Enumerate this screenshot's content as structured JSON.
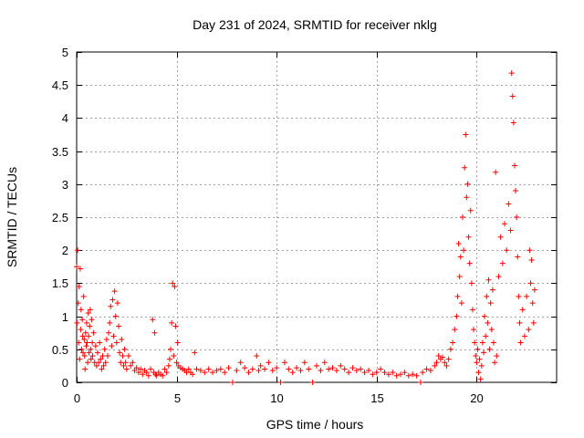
{
  "chart_data": {
    "type": "scatter",
    "title": "Day 231 of 2024, SRMTID for receiver nklg",
    "xlabel": "GPS time / hours",
    "ylabel": "SRMTID / TECUs",
    "xlim": [
      0,
      24
    ],
    "ylim": [
      0,
      5
    ],
    "xticks": [
      0,
      5,
      10,
      15,
      20
    ],
    "xtick_labels": [
      "0",
      "5",
      "10",
      "15",
      "20"
    ],
    "yticks": [
      0,
      0.5,
      1,
      1.5,
      2,
      2.5,
      3,
      3.5,
      4,
      4.5,
      5
    ],
    "ytick_labels": [
      "0",
      "0.5",
      "1",
      "1.5",
      "2",
      "2.5",
      "3",
      "3.5",
      "4",
      "4.5",
      "5"
    ],
    "grid": true,
    "marker": "+",
    "series": [
      {
        "name": "SRMTID",
        "color": "#ff0000",
        "points": [
          [
            0.0,
            1.75
          ],
          [
            0.02,
            0.9
          ],
          [
            0.05,
            2.0
          ],
          [
            0.08,
            1.2
          ],
          [
            0.1,
            0.6
          ],
          [
            0.12,
            1.45
          ],
          [
            0.15,
            0.35
          ],
          [
            0.18,
            1.72
          ],
          [
            0.2,
            0.8
          ],
          [
            0.22,
            1.1
          ],
          [
            0.25,
            0.5
          ],
          [
            0.28,
            0.95
          ],
          [
            0.3,
            0.7
          ],
          [
            0.32,
            0.45
          ],
          [
            0.35,
            1.3
          ],
          [
            0.38,
            0.65
          ],
          [
            0.4,
            0.4
          ],
          [
            0.42,
            0.2
          ],
          [
            0.45,
            0.75
          ],
          [
            0.48,
            0.55
          ],
          [
            0.5,
            0.9
          ],
          [
            0.52,
            0.6
          ],
          [
            0.55,
            0.3
          ],
          [
            0.58,
            1.05
          ],
          [
            0.6,
            0.7
          ],
          [
            0.62,
            0.45
          ],
          [
            0.65,
            0.85
          ],
          [
            0.68,
            1.1
          ],
          [
            0.7,
            0.5
          ],
          [
            0.72,
            0.35
          ],
          [
            0.75,
            0.95
          ],
          [
            0.78,
            0.6
          ],
          [
            0.8,
            0.4
          ],
          [
            0.85,
            0.75
          ],
          [
            0.9,
            0.3
          ],
          [
            0.95,
            0.55
          ],
          [
            1.0,
            0.25
          ],
          [
            1.05,
            0.45
          ],
          [
            1.1,
            0.3
          ],
          [
            1.15,
            0.6
          ],
          [
            1.2,
            0.35
          ],
          [
            1.25,
            0.2
          ],
          [
            1.3,
            0.4
          ],
          [
            1.35,
            0.25
          ],
          [
            1.4,
            0.5
          ],
          [
            1.45,
            0.3
          ],
          [
            1.5,
            0.65
          ],
          [
            1.55,
            0.4
          ],
          [
            1.6,
            0.75
          ],
          [
            1.65,
            0.9
          ],
          [
            1.7,
            1.15
          ],
          [
            1.75,
            0.55
          ],
          [
            1.8,
            1.25
          ],
          [
            1.85,
            0.7
          ],
          [
            1.9,
            1.38
          ],
          [
            1.95,
            1.0
          ],
          [
            2.0,
            0.6
          ],
          [
            2.05,
            1.2
          ],
          [
            2.1,
            0.85
          ],
          [
            2.15,
            0.45
          ],
          [
            2.2,
            0.3
          ],
          [
            2.25,
            0.65
          ],
          [
            2.3,
            0.4
          ],
          [
            2.35,
            0.25
          ],
          [
            2.4,
            0.5
          ],
          [
            2.45,
            0.3
          ],
          [
            2.5,
            0.2
          ],
          [
            2.6,
            0.4
          ],
          [
            2.7,
            0.25
          ],
          [
            2.8,
            0.3
          ],
          [
            2.9,
            0.18
          ],
          [
            3.0,
            0.22
          ],
          [
            3.1,
            0.15
          ],
          [
            3.2,
            0.2
          ],
          [
            3.3,
            0.12
          ],
          [
            3.4,
            0.18
          ],
          [
            3.5,
            0.15
          ],
          [
            3.6,
            0.1
          ],
          [
            3.7,
            0.2
          ],
          [
            3.8,
            0.95
          ],
          [
            3.85,
            0.15
          ],
          [
            3.9,
            0.75
          ],
          [
            3.95,
            0.12
          ],
          [
            4.0,
            0.1
          ],
          [
            4.1,
            0.15
          ],
          [
            4.2,
            0.12
          ],
          [
            4.3,
            0.1
          ],
          [
            4.4,
            0.2
          ],
          [
            4.5,
            0.15
          ],
          [
            4.6,
            0.25
          ],
          [
            4.65,
            0.35
          ],
          [
            4.7,
            0.5
          ],
          [
            4.75,
            0.9
          ],
          [
            4.8,
            1.5
          ],
          [
            4.85,
            0.4
          ],
          [
            4.9,
            1.45
          ],
          [
            4.95,
            0.85
          ],
          [
            5.0,
            0.3
          ],
          [
            5.05,
            0.6
          ],
          [
            5.1,
            0.25
          ],
          [
            5.2,
            0.22
          ],
          [
            5.3,
            0.2
          ],
          [
            5.4,
            0.18
          ],
          [
            5.5,
            0.15
          ],
          [
            5.6,
            0.2
          ],
          [
            5.7,
            0.15
          ],
          [
            5.8,
            0.12
          ],
          [
            5.9,
            0.45
          ],
          [
            6.0,
            0.2
          ],
          [
            6.2,
            0.18
          ],
          [
            6.4,
            0.15
          ],
          [
            6.6,
            0.2
          ],
          [
            6.8,
            0.15
          ],
          [
            7.0,
            0.18
          ],
          [
            7.2,
            0.2
          ],
          [
            7.4,
            0.15
          ],
          [
            7.6,
            0.22
          ],
          [
            7.8,
            0.0
          ],
          [
            8.0,
            0.18
          ],
          [
            8.2,
            0.3
          ],
          [
            8.4,
            0.22
          ],
          [
            8.6,
            0.15
          ],
          [
            8.8,
            0.2
          ],
          [
            9.0,
            0.4
          ],
          [
            9.1,
            0.18
          ],
          [
            9.2,
            0.25
          ],
          [
            9.4,
            0.2
          ],
          [
            9.6,
            0.3
          ],
          [
            9.8,
            0.18
          ],
          [
            10.0,
            0.22
          ],
          [
            10.2,
            0.0
          ],
          [
            10.4,
            0.3
          ],
          [
            10.6,
            0.2
          ],
          [
            10.8,
            0.15
          ],
          [
            11.0,
            0.22
          ],
          [
            11.2,
            0.18
          ],
          [
            11.4,
            0.3
          ],
          [
            11.6,
            0.2
          ],
          [
            11.8,
            0.0
          ],
          [
            12.0,
            0.25
          ],
          [
            12.2,
            0.18
          ],
          [
            12.4,
            0.3
          ],
          [
            12.6,
            0.2
          ],
          [
            12.8,
            0.22
          ],
          [
            13.0,
            0.18
          ],
          [
            13.2,
            0.25
          ],
          [
            13.4,
            0.2
          ],
          [
            13.6,
            0.15
          ],
          [
            13.8,
            0.22
          ],
          [
            14.0,
            0.18
          ],
          [
            14.2,
            0.2
          ],
          [
            14.4,
            0.15
          ],
          [
            14.6,
            0.18
          ],
          [
            14.8,
            0.12
          ],
          [
            15.0,
            0.15
          ],
          [
            15.2,
            0.2
          ],
          [
            15.4,
            0.15
          ],
          [
            15.6,
            0.12
          ],
          [
            15.8,
            0.15
          ],
          [
            16.0,
            0.1
          ],
          [
            16.2,
            0.12
          ],
          [
            16.4,
            0.15
          ],
          [
            16.6,
            0.1
          ],
          [
            16.8,
            0.12
          ],
          [
            17.0,
            0.1
          ],
          [
            17.2,
            0.0
          ],
          [
            17.3,
            0.15
          ],
          [
            17.5,
            0.2
          ],
          [
            17.7,
            0.18
          ],
          [
            17.9,
            0.25
          ],
          [
            18.0,
            0.3
          ],
          [
            18.1,
            0.4
          ],
          [
            18.2,
            0.35
          ],
          [
            18.3,
            0.38
          ],
          [
            18.4,
            0.3
          ],
          [
            18.5,
            0.25
          ],
          [
            18.6,
            0.35
          ],
          [
            18.7,
            0.5
          ],
          [
            18.8,
            0.6
          ],
          [
            18.9,
            0.8
          ],
          [
            19.0,
            1.0
          ],
          [
            19.05,
            1.3
          ],
          [
            19.1,
            2.1
          ],
          [
            19.15,
            1.6
          ],
          [
            19.2,
            1.9
          ],
          [
            19.25,
            1.2
          ],
          [
            19.3,
            2.5
          ],
          [
            19.35,
            2.0
          ],
          [
            19.4,
            3.25
          ],
          [
            19.45,
            3.75
          ],
          [
            19.5,
            2.8
          ],
          [
            19.55,
            3.0
          ],
          [
            19.6,
            2.2
          ],
          [
            19.65,
            1.8
          ],
          [
            19.7,
            2.6
          ],
          [
            19.75,
            1.5
          ],
          [
            19.8,
            1.1
          ],
          [
            19.85,
            0.8
          ],
          [
            19.9,
            0.6
          ],
          [
            19.95,
            0.4
          ],
          [
            20.0,
            0.3
          ],
          [
            20.05,
            0.5
          ],
          [
            20.1,
            0.15
          ],
          [
            20.15,
            0.35
          ],
          [
            20.2,
            0.05
          ],
          [
            20.25,
            0.25
          ],
          [
            20.3,
            0.6
          ],
          [
            20.35,
            0.45
          ],
          [
            20.4,
            1.0
          ],
          [
            20.45,
            0.7
          ],
          [
            20.5,
            1.3
          ],
          [
            20.55,
            0.9
          ],
          [
            20.6,
            1.55
          ],
          [
            20.65,
            0.5
          ],
          [
            20.7,
            1.2
          ],
          [
            20.75,
            0.8
          ],
          [
            20.8,
            1.4
          ],
          [
            20.85,
            0.6
          ],
          [
            20.9,
            0.3
          ],
          [
            20.95,
            3.18
          ],
          [
            21.0,
            0.4
          ],
          [
            21.1,
            1.6
          ],
          [
            21.2,
            2.2
          ],
          [
            21.3,
            1.8
          ],
          [
            21.4,
            2.4
          ],
          [
            21.5,
            2.0
          ],
          [
            21.6,
            2.7
          ],
          [
            21.7,
            2.3
          ],
          [
            21.75,
            4.68
          ],
          [
            21.8,
            4.33
          ],
          [
            21.85,
            3.93
          ],
          [
            21.9,
            3.28
          ],
          [
            21.95,
            2.9
          ],
          [
            22.0,
            2.5
          ],
          [
            22.05,
            1.9
          ],
          [
            22.1,
            1.3
          ],
          [
            22.15,
            0.9
          ],
          [
            22.2,
            0.6
          ],
          [
            22.3,
            1.1
          ],
          [
            22.4,
            0.7
          ],
          [
            22.5,
            1.3
          ],
          [
            22.6,
            0.8
          ],
          [
            22.65,
            2.0
          ],
          [
            22.7,
            1.5
          ],
          [
            22.75,
            1.85
          ],
          [
            22.8,
            1.2
          ],
          [
            22.85,
            0.9
          ],
          [
            22.9,
            1.4
          ]
        ]
      }
    ]
  }
}
